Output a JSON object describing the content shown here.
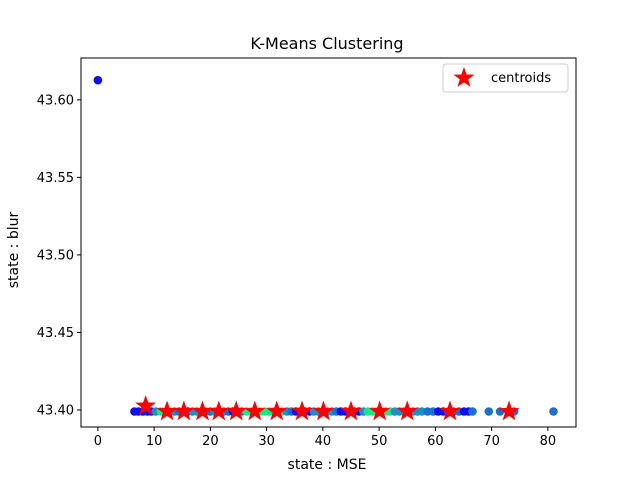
{
  "chart_data": {
    "type": "scatter",
    "title": "K-Means Clustering",
    "xlabel": "state : MSE",
    "ylabel": "state : blur",
    "xlim": [
      -3,
      85
    ],
    "ylim": [
      43.389,
      43.627
    ],
    "xticks": [
      0,
      10,
      20,
      30,
      40,
      50,
      60,
      70,
      80
    ],
    "yticks": [
      43.4,
      43.45,
      43.5,
      43.55,
      43.6
    ],
    "ytick_labels": [
      "43.40",
      "43.45",
      "43.50",
      "43.55",
      "43.60"
    ],
    "grid": false,
    "legend": {
      "position": "top-right",
      "entries": [
        "centroids"
      ]
    },
    "colors": {
      "cluster_a": "#1010ee",
      "cluster_b": "#1a6fd0",
      "cluster_c": "#1f8ec0",
      "cluster_d": "#18e888",
      "centroid": "#ff0000"
    },
    "points": [
      {
        "x": 0.0,
        "y": 43.6127,
        "c": "cluster_a"
      },
      {
        "x": 6.5,
        "y": 43.399,
        "c": "cluster_a"
      },
      {
        "x": 7.2,
        "y": 43.399,
        "c": "cluster_a"
      },
      {
        "x": 8.0,
        "y": 43.399,
        "c": "cluster_a"
      },
      {
        "x": 8.8,
        "y": 43.399,
        "c": "cluster_a"
      },
      {
        "x": 9.5,
        "y": 43.399,
        "c": "cluster_a"
      },
      {
        "x": 10.3,
        "y": 43.399,
        "c": "cluster_c"
      },
      {
        "x": 11.2,
        "y": 43.399,
        "c": "cluster_d"
      },
      {
        "x": 12.0,
        "y": 43.399,
        "c": "cluster_d"
      },
      {
        "x": 12.8,
        "y": 43.399,
        "c": "cluster_d"
      },
      {
        "x": 13.6,
        "y": 43.399,
        "c": "cluster_c"
      },
      {
        "x": 14.4,
        "y": 43.399,
        "c": "cluster_b"
      },
      {
        "x": 15.2,
        "y": 43.399,
        "c": "cluster_b"
      },
      {
        "x": 16.0,
        "y": 43.399,
        "c": "cluster_a"
      },
      {
        "x": 16.8,
        "y": 43.399,
        "c": "cluster_c"
      },
      {
        "x": 17.6,
        "y": 43.399,
        "c": "cluster_c"
      },
      {
        "x": 18.4,
        "y": 43.399,
        "c": "cluster_c"
      },
      {
        "x": 19.2,
        "y": 43.399,
        "c": "cluster_d"
      },
      {
        "x": 20.0,
        "y": 43.399,
        "c": "cluster_b"
      },
      {
        "x": 20.8,
        "y": 43.399,
        "c": "cluster_c"
      },
      {
        "x": 21.6,
        "y": 43.399,
        "c": "cluster_c"
      },
      {
        "x": 22.4,
        "y": 43.399,
        "c": "cluster_c"
      },
      {
        "x": 23.2,
        "y": 43.399,
        "c": "cluster_b"
      },
      {
        "x": 24.0,
        "y": 43.399,
        "c": "cluster_a"
      },
      {
        "x": 24.8,
        "y": 43.399,
        "c": "cluster_a"
      },
      {
        "x": 25.6,
        "y": 43.399,
        "c": "cluster_b"
      },
      {
        "x": 26.4,
        "y": 43.399,
        "c": "cluster_d"
      },
      {
        "x": 27.2,
        "y": 43.399,
        "c": "cluster_d"
      },
      {
        "x": 28.0,
        "y": 43.399,
        "c": "cluster_d"
      },
      {
        "x": 28.8,
        "y": 43.399,
        "c": "cluster_d"
      },
      {
        "x": 29.6,
        "y": 43.399,
        "c": "cluster_d"
      },
      {
        "x": 30.4,
        "y": 43.399,
        "c": "cluster_d"
      },
      {
        "x": 31.2,
        "y": 43.399,
        "c": "cluster_d"
      },
      {
        "x": 32.0,
        "y": 43.399,
        "c": "cluster_d"
      },
      {
        "x": 32.8,
        "y": 43.399,
        "c": "cluster_d"
      },
      {
        "x": 33.6,
        "y": 43.399,
        "c": "cluster_c"
      },
      {
        "x": 34.4,
        "y": 43.399,
        "c": "cluster_b"
      },
      {
        "x": 35.2,
        "y": 43.399,
        "c": "cluster_a"
      },
      {
        "x": 36.0,
        "y": 43.399,
        "c": "cluster_a"
      },
      {
        "x": 36.8,
        "y": 43.399,
        "c": "cluster_a"
      },
      {
        "x": 37.6,
        "y": 43.399,
        "c": "cluster_a"
      },
      {
        "x": 38.4,
        "y": 43.399,
        "c": "cluster_c"
      },
      {
        "x": 39.2,
        "y": 43.399,
        "c": "cluster_c"
      },
      {
        "x": 40.0,
        "y": 43.399,
        "c": "cluster_b"
      },
      {
        "x": 40.8,
        "y": 43.399,
        "c": "cluster_c"
      },
      {
        "x": 41.6,
        "y": 43.399,
        "c": "cluster_c"
      },
      {
        "x": 42.4,
        "y": 43.399,
        "c": "cluster_b"
      },
      {
        "x": 43.2,
        "y": 43.399,
        "c": "cluster_a"
      },
      {
        "x": 44.0,
        "y": 43.399,
        "c": "cluster_a"
      },
      {
        "x": 44.8,
        "y": 43.399,
        "c": "cluster_a"
      },
      {
        "x": 45.6,
        "y": 43.399,
        "c": "cluster_a"
      },
      {
        "x": 46.4,
        "y": 43.399,
        "c": "cluster_a"
      },
      {
        "x": 47.2,
        "y": 43.399,
        "c": "cluster_c"
      },
      {
        "x": 48.0,
        "y": 43.399,
        "c": "cluster_d"
      },
      {
        "x": 48.8,
        "y": 43.399,
        "c": "cluster_d"
      },
      {
        "x": 49.6,
        "y": 43.399,
        "c": "cluster_d"
      },
      {
        "x": 50.4,
        "y": 43.399,
        "c": "cluster_d"
      },
      {
        "x": 51.2,
        "y": 43.399,
        "c": "cluster_d"
      },
      {
        "x": 52.0,
        "y": 43.399,
        "c": "cluster_d"
      },
      {
        "x": 52.8,
        "y": 43.399,
        "c": "cluster_c"
      },
      {
        "x": 53.6,
        "y": 43.399,
        "c": "cluster_c"
      },
      {
        "x": 54.4,
        "y": 43.399,
        "c": "cluster_c"
      },
      {
        "x": 55.2,
        "y": 43.399,
        "c": "cluster_c"
      },
      {
        "x": 56.0,
        "y": 43.399,
        "c": "cluster_c"
      },
      {
        "x": 56.8,
        "y": 43.399,
        "c": "cluster_c"
      },
      {
        "x": 57.6,
        "y": 43.399,
        "c": "cluster_c"
      },
      {
        "x": 58.6,
        "y": 43.399,
        "c": "cluster_b"
      },
      {
        "x": 59.6,
        "y": 43.399,
        "c": "cluster_b"
      },
      {
        "x": 60.5,
        "y": 43.399,
        "c": "cluster_a"
      },
      {
        "x": 61.4,
        "y": 43.399,
        "c": "cluster_a"
      },
      {
        "x": 62.3,
        "y": 43.399,
        "c": "cluster_b"
      },
      {
        "x": 63.2,
        "y": 43.399,
        "c": "cluster_b"
      },
      {
        "x": 64.2,
        "y": 43.399,
        "c": "cluster_b"
      },
      {
        "x": 65.1,
        "y": 43.399,
        "c": "cluster_a"
      },
      {
        "x": 65.9,
        "y": 43.399,
        "c": "cluster_a"
      },
      {
        "x": 66.6,
        "y": 43.399,
        "c": "cluster_b"
      },
      {
        "x": 69.5,
        "y": 43.399,
        "c": "cluster_b"
      },
      {
        "x": 71.5,
        "y": 43.399,
        "c": "cluster_b"
      },
      {
        "x": 73.0,
        "y": 43.399,
        "c": "cluster_b"
      },
      {
        "x": 74.0,
        "y": 43.399,
        "c": "cluster_b"
      },
      {
        "x": 81.0,
        "y": 43.399,
        "c": "cluster_b"
      }
    ],
    "centroids": [
      {
        "x": 8.5,
        "y": 43.4025
      },
      {
        "x": 12.3,
        "y": 43.399
      },
      {
        "x": 15.3,
        "y": 43.399
      },
      {
        "x": 18.6,
        "y": 43.399
      },
      {
        "x": 21.5,
        "y": 43.399
      },
      {
        "x": 24.6,
        "y": 43.399
      },
      {
        "x": 27.9,
        "y": 43.399
      },
      {
        "x": 31.8,
        "y": 43.399
      },
      {
        "x": 36.3,
        "y": 43.399
      },
      {
        "x": 40.1,
        "y": 43.399
      },
      {
        "x": 45.0,
        "y": 43.399
      },
      {
        "x": 50.1,
        "y": 43.399
      },
      {
        "x": 55.0,
        "y": 43.399
      },
      {
        "x": 62.6,
        "y": 43.399
      },
      {
        "x": 73.1,
        "y": 43.399
      }
    ]
  }
}
